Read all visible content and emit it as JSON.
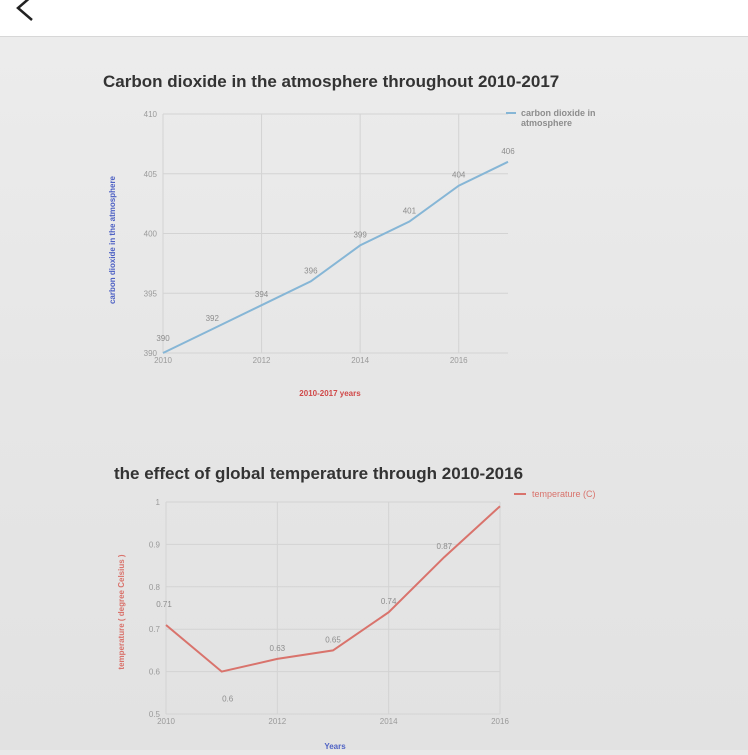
{
  "header": {
    "back_icon": "chevron-left-icon",
    "title": ""
  },
  "chart_data": [
    {
      "type": "line",
      "title": "Carbon dioxide in the atmosphere throughout 2010-2017",
      "xlabel": "2010-2017 years",
      "ylabel": "carbon dioxide in the atmosphere",
      "x_ticks": [
        "2010",
        "2012",
        "2014",
        "2016"
      ],
      "y_ticks": [
        "390",
        "395",
        "400",
        "405",
        "410"
      ],
      "xlim": [
        2010,
        2017
      ],
      "ylim": [
        390,
        410
      ],
      "grid": true,
      "legend": "top-right",
      "series": [
        {
          "name": "carbon dioxide in atmosphere",
          "color": "#86b6d6",
          "x": [
            2010,
            2011,
            2012,
            2013,
            2014,
            2015,
            2016,
            2017
          ],
          "y": [
            390,
            392,
            394,
            396,
            399,
            401,
            404,
            406
          ],
          "labels": [
            "390",
            "392",
            "394",
            "396",
            "399",
            "401",
            "404",
            "406"
          ]
        }
      ]
    },
    {
      "type": "line",
      "title": "the effect of global temperature through 2010-2016",
      "xlabel": "Years",
      "ylabel": "temperature ( degree Celsius )",
      "x_ticks": [
        "2010",
        "2012",
        "2014",
        "2016"
      ],
      "y_ticks": [
        "0.5",
        "0.6",
        "0.7",
        "0.8",
        "0.9",
        "1"
      ],
      "xlim": [
        2010,
        2016
      ],
      "ylim": [
        0.5,
        1
      ],
      "grid": true,
      "legend": "top-right",
      "series": [
        {
          "name": "temperature (C)",
          "color": "#d9736c",
          "x": [
            2010,
            2011,
            2012,
            2013,
            2014,
            2015,
            2016
          ],
          "y": [
            0.71,
            0.6,
            0.63,
            0.65,
            0.74,
            0.87,
            0.99
          ],
          "labels": [
            "0.71",
            "0.6",
            "0.63",
            "0.65",
            "0.74",
            "0.87",
            ""
          ]
        }
      ]
    }
  ]
}
